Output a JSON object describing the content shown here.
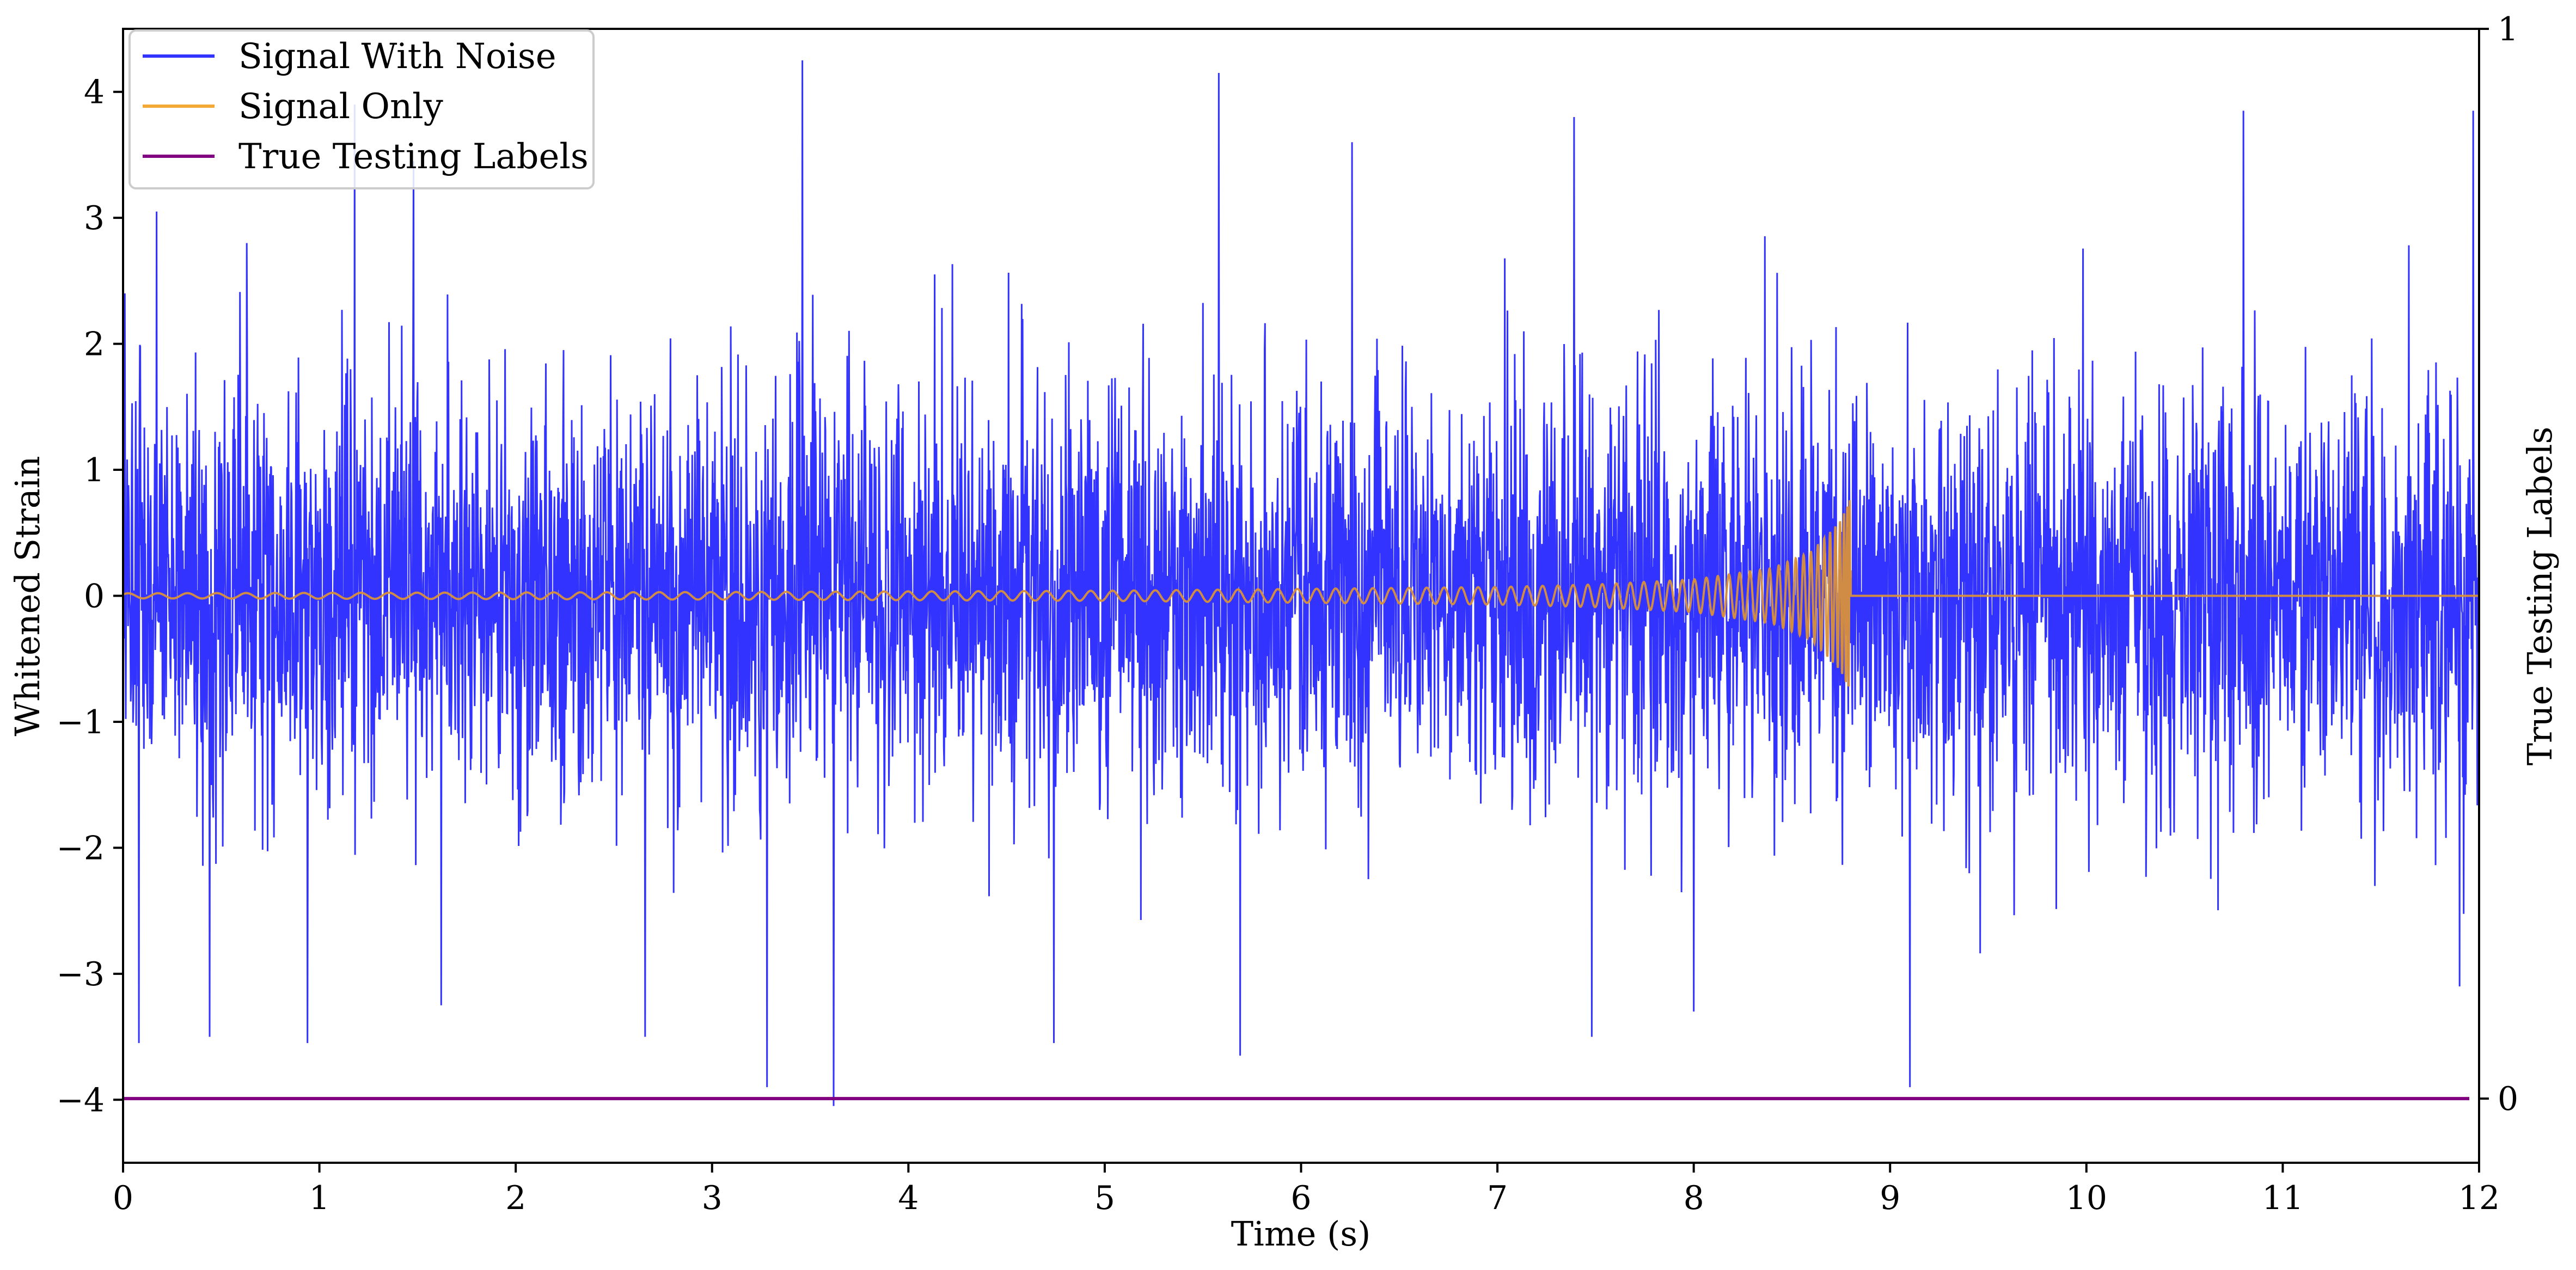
{
  "chart_data": {
    "type": "line",
    "title": "",
    "xlabel": "Time (s)",
    "ylabel": "Whitened Strain",
    "y2label": "True Testing Labels",
    "xlim": [
      0,
      12
    ],
    "ylim": [
      -4.5,
      4.5
    ],
    "y2lim": [
      -0.06,
      1.0
    ],
    "x_ticks": [
      "0",
      "1",
      "2",
      "3",
      "4",
      "5",
      "6",
      "7",
      "8",
      "9",
      "10",
      "11",
      "12"
    ],
    "y_ticks": [
      "−4",
      "−3",
      "−2",
      "−1",
      "0",
      "1",
      "2",
      "3",
      "4"
    ],
    "y2_ticks": [
      "0",
      "1"
    ],
    "grid": false,
    "legend_position": "upper-left",
    "series": [
      {
        "name": "Signal With Noise",
        "color": "#3333ff",
        "axis": "left",
        "description_values": "whitened noisy strain sampled over 0-12 s",
        "typical_range": [
          -1.8,
          1.8
        ],
        "peaks": [
          {
            "x": 0.01,
            "y": 2.4
          },
          {
            "x": 0.08,
            "y": -3.55
          },
          {
            "x": 0.17,
            "y": 3.05
          },
          {
            "x": 0.44,
            "y": -3.5
          },
          {
            "x": 0.63,
            "y": 2.8
          },
          {
            "x": 0.94,
            "y": -3.55
          },
          {
            "x": 1.18,
            "y": 3.9
          },
          {
            "x": 1.48,
            "y": 3.45
          },
          {
            "x": 1.62,
            "y": -3.25
          },
          {
            "x": 2.66,
            "y": -3.5
          },
          {
            "x": 3.28,
            "y": -3.9
          },
          {
            "x": 3.46,
            "y": 4.25
          },
          {
            "x": 3.62,
            "y": -4.05
          },
          {
            "x": 4.74,
            "y": -3.55
          },
          {
            "x": 5.58,
            "y": 4.15
          },
          {
            "x": 5.69,
            "y": -3.65
          },
          {
            "x": 6.26,
            "y": 3.6
          },
          {
            "x": 7.39,
            "y": 3.8
          },
          {
            "x": 7.48,
            "y": -3.5
          },
          {
            "x": 8.0,
            "y": -3.3
          },
          {
            "x": 9.1,
            "y": -3.9
          },
          {
            "x": 10.8,
            "y": 3.85
          },
          {
            "x": 11.9,
            "y": -3.1
          },
          {
            "x": 11.97,
            "y": 3.85
          }
        ]
      },
      {
        "name": "Signal Only",
        "color": "#f2a935",
        "axis": "left",
        "waveform": "chirp",
        "merger_time": 8.8,
        "peak_amplitude": 0.78,
        "envelope": [
          {
            "t": 0.0,
            "a": 0.02
          },
          {
            "t": 3.0,
            "a": 0.03
          },
          {
            "t": 5.0,
            "a": 0.04
          },
          {
            "t": 7.0,
            "a": 0.07
          },
          {
            "t": 7.5,
            "a": 0.09
          },
          {
            "t": 8.0,
            "a": 0.13
          },
          {
            "t": 8.4,
            "a": 0.22
          },
          {
            "t": 8.6,
            "a": 0.35
          },
          {
            "t": 8.75,
            "a": 0.6
          },
          {
            "t": 8.8,
            "a": 0.78
          }
        ],
        "after_merger_value": 0
      },
      {
        "name": "True Testing Labels",
        "color": "#800080",
        "axis": "right",
        "x": [
          0,
          11.95
        ],
        "values": [
          0,
          0
        ]
      }
    ]
  }
}
